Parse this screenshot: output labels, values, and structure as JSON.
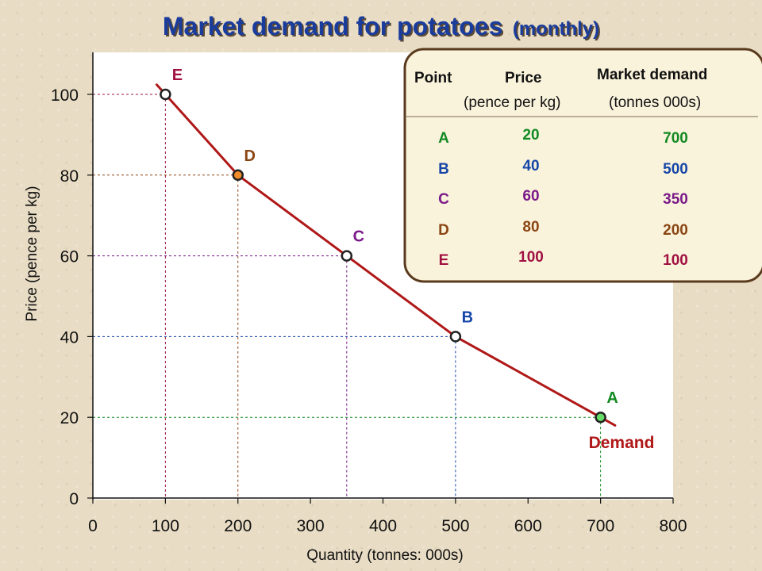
{
  "title": {
    "main": "Market demand for potatoes",
    "suffix": "(monthly)"
  },
  "chart_data": {
    "type": "line",
    "title": "Market demand for potatoes (monthly)",
    "xlabel": "Quantity (tonnes: 000s)",
    "ylabel": "Price (pence per kg)",
    "xlim": [
      0,
      800
    ],
    "ylim": [
      0,
      110
    ],
    "x_ticks": [
      0,
      100,
      200,
      300,
      400,
      500,
      600,
      700,
      800
    ],
    "y_ticks": [
      0,
      20,
      40,
      60,
      80,
      100
    ],
    "series": [
      {
        "name": "Demand",
        "color": "#b01818",
        "points": [
          {
            "label": "E",
            "x": 100,
            "y": 100,
            "label_color": "#a01040",
            "marker_fill": "#ffffff"
          },
          {
            "label": "D",
            "x": 200,
            "y": 80,
            "label_color": "#8b4513",
            "marker_fill": "#f28c28"
          },
          {
            "label": "C",
            "x": 350,
            "y": 60,
            "label_color": "#7a1a8a",
            "marker_fill": "#ffffff"
          },
          {
            "label": "B",
            "x": 500,
            "y": 40,
            "label_color": "#1646a8",
            "marker_fill": "#ffffff"
          },
          {
            "label": "A",
            "x": 700,
            "y": 20,
            "label_color": "#128a22",
            "marker_fill": "#66dd66"
          }
        ]
      }
    ],
    "guide_colors": {
      "E": "#a01040",
      "D": "#8b4513",
      "C": "#7a1a8a",
      "B": "#1646a8",
      "A": "#128a22"
    },
    "curve_label": "Demand",
    "grid": false,
    "plot_background": "#ffffff"
  },
  "table": {
    "headers": {
      "point": "Point",
      "price": "Price",
      "price_unit": "(pence per kg)",
      "demand": "Market demand",
      "demand_unit": "(tonnes 000s)"
    },
    "rows": [
      {
        "point": "A",
        "price": "20",
        "demand": "700",
        "color": "#128a22"
      },
      {
        "point": "B",
        "price": "40",
        "demand": "500",
        "color": "#1646a8"
      },
      {
        "point": "C",
        "price": "60",
        "demand": "350",
        "color": "#7a1a8a"
      },
      {
        "point": "D",
        "price": "80",
        "demand": "200",
        "color": "#8b4513"
      },
      {
        "point": "E",
        "price": "100",
        "demand": "100",
        "color": "#a01040"
      }
    ],
    "border_color": "#5a3a1c",
    "background": "#faf3dc"
  }
}
